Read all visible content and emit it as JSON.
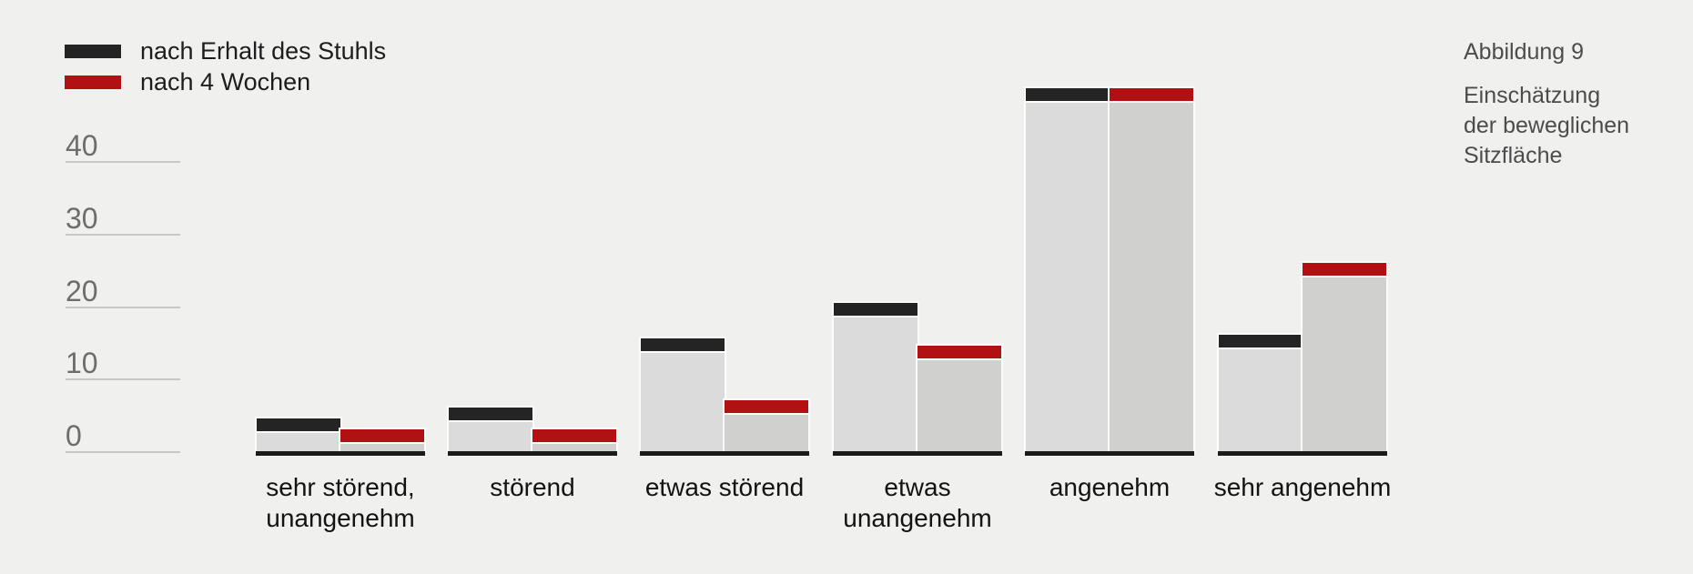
{
  "legend": {
    "items": [
      {
        "label": "nach Erhalt des Stuhls",
        "color": "#242424"
      },
      {
        "label": "nach 4 Wochen",
        "color": "#b11113"
      }
    ]
  },
  "caption": {
    "title": "Abbildung 9",
    "lines": [
      "Einschätzung",
      "der beweglichen",
      "Sitzfläche"
    ]
  },
  "colors": {
    "background": "#f0f0ef",
    "series_received": "#242424",
    "series_after4weeks": "#b11113",
    "bar_body_received": "#dbdbdb",
    "bar_body_after4weeks": "#d0d0cf",
    "baseline": "#1b1b1b",
    "gridline": "#c7c7c6",
    "tick_text": "#6d6d6d",
    "category_text": "#131313",
    "caption_text": "#4c4c4c"
  },
  "chart_data": {
    "type": "bar",
    "title": "",
    "xlabel": "",
    "ylabel": "",
    "categories": [
      "sehr störend, unangenehm",
      "störend",
      "etwas störend",
      "etwas unangenehm",
      "angenehm",
      "sehr angenehm"
    ],
    "category_label_lines": [
      [
        "sehr störend,",
        "unangenehm"
      ],
      [
        "störend"
      ],
      [
        "etwas störend"
      ],
      [
        "etwas",
        "unangenehm"
      ],
      [
        "angenehm"
      ],
      [
        "sehr angenehm"
      ]
    ],
    "series": [
      {
        "name": "nach Erhalt des Stuhls",
        "color": "#242424",
        "body_color": "#dbdbdb",
        "values": [
          4.5,
          6,
          15.5,
          20.5,
          50,
          16
        ]
      },
      {
        "name": "nach 4 Wochen",
        "color": "#b11113",
        "body_color": "#d0d0cf",
        "values": [
          3,
          3,
          7,
          14.5,
          50,
          26
        ]
      }
    ],
    "yticks": [
      0,
      10,
      20,
      30,
      40
    ],
    "ylim": [
      0,
      50
    ],
    "grid": "left-stub-lines",
    "legend_position": "top-left"
  }
}
